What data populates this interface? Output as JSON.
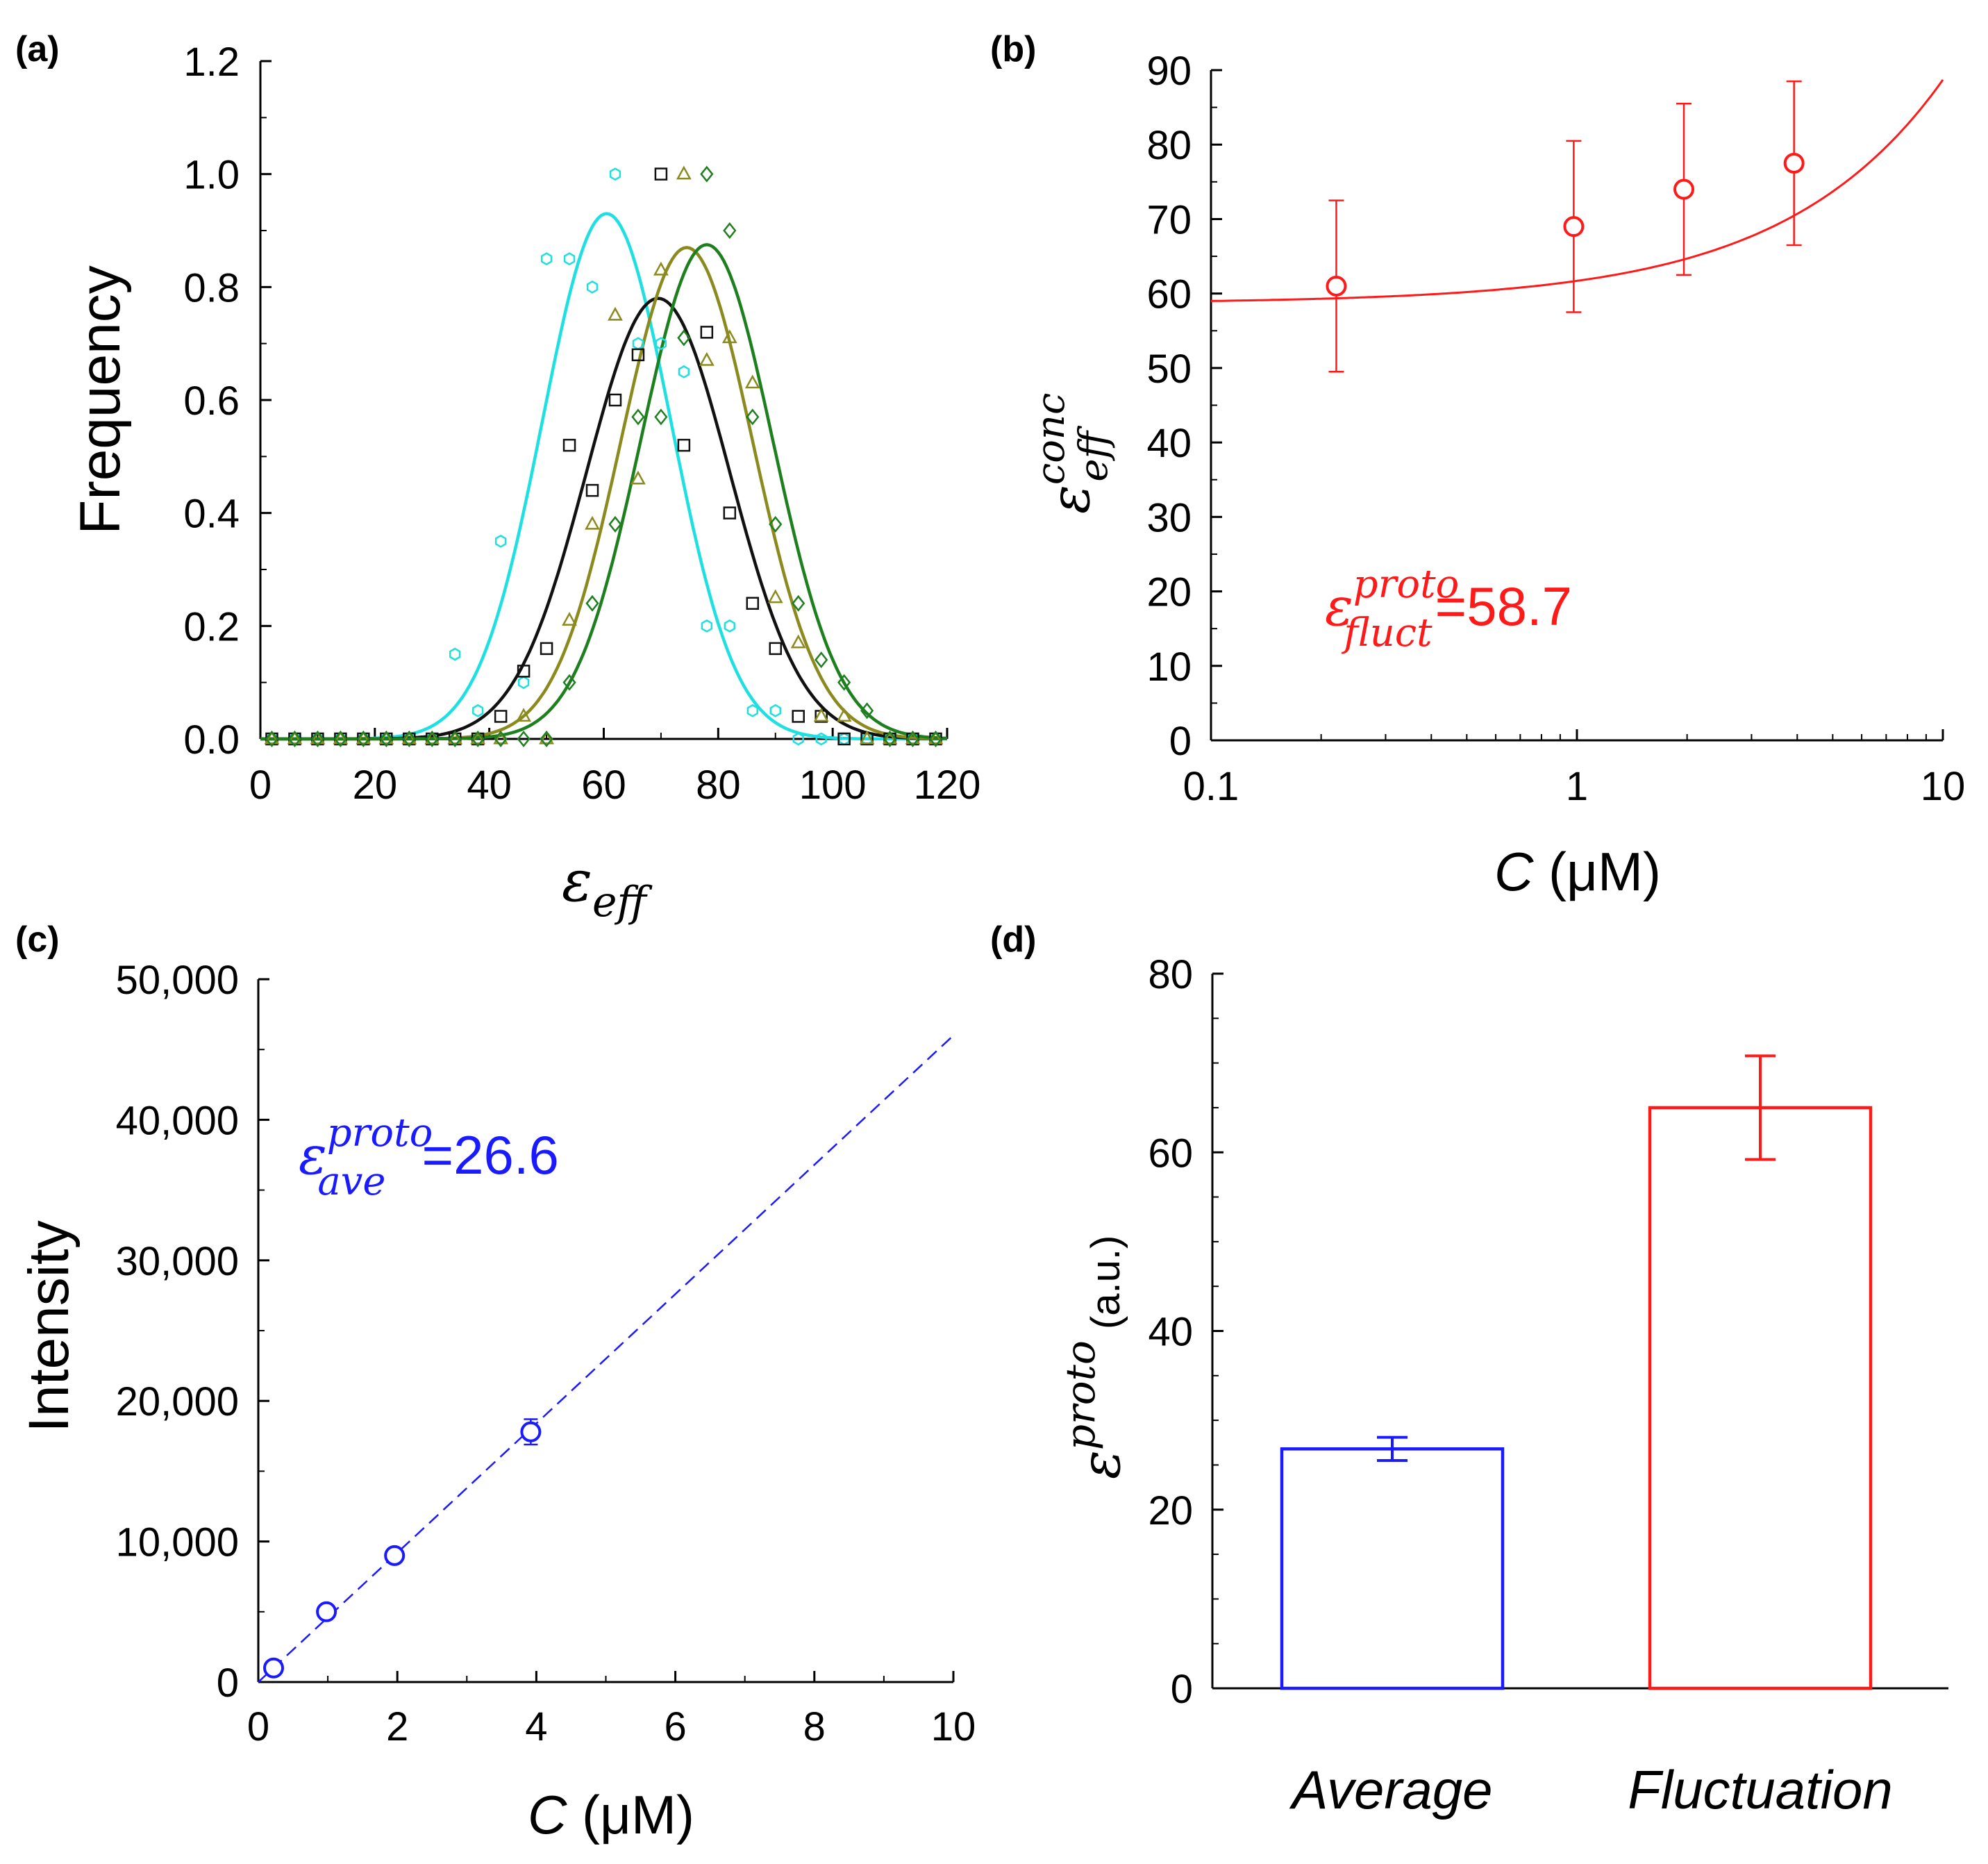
{
  "chart_data": [
    {
      "id": "a",
      "panel_label": "(a)",
      "type": "scatter",
      "xlabel_symbol": "ε",
      "xlabel_sub": "eff",
      "ylabel": "Frequency",
      "xlim": [
        0,
        120
      ],
      "ylim": [
        0,
        1.2
      ],
      "xticks": [
        0,
        20,
        40,
        60,
        80,
        100,
        120
      ],
      "yticks": [
        0,
        0.2,
        0.4,
        0.6,
        0.8,
        1.0,
        1.2
      ],
      "ytick_labels": [
        "0.0",
        "0.2",
        "0.4",
        "0.6",
        "0.8",
        "1.0",
        "1.2"
      ],
      "series": [
        {
          "name": "cyan",
          "color": "#1ee0e0",
          "marker": "hexagon",
          "mean": 60.5,
          "sd": 11.2,
          "amp": 0.93,
          "x": [
            2,
            6,
            10,
            14,
            18,
            22,
            26,
            30,
            34,
            38,
            42,
            46,
            50,
            54,
            58,
            62,
            66,
            70,
            74,
            78,
            82,
            86,
            90,
            94,
            98,
            102,
            106,
            110,
            114,
            118
          ],
          "y": [
            0,
            0,
            0,
            0,
            0,
            0,
            0,
            0,
            0.15,
            0.05,
            0.35,
            0.1,
            0.85,
            0.85,
            0.8,
            1.0,
            0.7,
            0.7,
            0.65,
            0.2,
            0.2,
            0.05,
            0.05,
            0,
            0,
            0,
            0,
            0,
            0,
            0
          ]
        },
        {
          "name": "black",
          "color": "#111111",
          "marker": "square",
          "mean": 69.5,
          "sd": 12.5,
          "amp": 0.78,
          "x": [
            2,
            6,
            10,
            14,
            18,
            22,
            26,
            30,
            34,
            38,
            42,
            46,
            50,
            54,
            58,
            62,
            66,
            70,
            74,
            78,
            82,
            86,
            90,
            94,
            98,
            102,
            106,
            110,
            114,
            118
          ],
          "y": [
            0,
            0,
            0,
            0,
            0,
            0,
            0,
            0,
            0,
            0,
            0.04,
            0.12,
            0.16,
            0.52,
            0.44,
            0.6,
            0.68,
            1.0,
            0.52,
            0.72,
            0.4,
            0.24,
            0.16,
            0.04,
            0.04,
            0,
            0,
            0,
            0,
            0
          ]
        },
        {
          "name": "olive",
          "color": "#8a8a1e",
          "marker": "triangle",
          "mean": 74.5,
          "sd": 11.5,
          "amp": 0.87,
          "x": [
            2,
            6,
            10,
            14,
            18,
            22,
            26,
            30,
            34,
            38,
            42,
            46,
            50,
            54,
            58,
            62,
            66,
            70,
            74,
            78,
            82,
            86,
            90,
            94,
            98,
            102,
            106,
            110,
            114,
            118
          ],
          "y": [
            0,
            0,
            0,
            0,
            0,
            0,
            0,
            0,
            0,
            0,
            0,
            0.04,
            0,
            0.21,
            0.38,
            0.75,
            0.46,
            0.83,
            1.0,
            0.67,
            0.71,
            0.63,
            0.25,
            0.17,
            0.04,
            0.04,
            0,
            0,
            0,
            0
          ]
        },
        {
          "name": "green",
          "color": "#1e7f1e",
          "marker": "diamond",
          "mean": 78,
          "sd": 11.5,
          "amp": 0.875,
          "x": [
            2,
            6,
            10,
            14,
            18,
            22,
            26,
            30,
            34,
            38,
            42,
            46,
            50,
            54,
            58,
            62,
            66,
            70,
            74,
            78,
            82,
            86,
            90,
            94,
            98,
            102,
            106,
            110,
            114,
            118
          ],
          "y": [
            0,
            0,
            0,
            0,
            0,
            0,
            0,
            0,
            0,
            0,
            0,
            0,
            0,
            0.1,
            0.24,
            0.38,
            0.57,
            0.57,
            0.71,
            1.0,
            0.9,
            0.57,
            0.38,
            0.24,
            0.14,
            0.1,
            0.05,
            0,
            0,
            0
          ]
        }
      ]
    },
    {
      "id": "b",
      "panel_label": "(b)",
      "type": "scatter",
      "xscale": "log",
      "xlabel": "C",
      "xlabel_unit": "(μM)",
      "ylabel_symbol": "ε",
      "ylabel_sup": "conc",
      "ylabel_sub": "eff",
      "xlim": [
        0.1,
        10
      ],
      "ylim": [
        0,
        90
      ],
      "xticks": [
        0.1,
        1,
        10
      ],
      "xtick_labels": [
        "0.1",
        "1",
        "10"
      ],
      "yticks": [
        0,
        10,
        20,
        30,
        40,
        50,
        60,
        70,
        80,
        90
      ],
      "color": "#ff1a1a",
      "points": {
        "x": [
          0.22,
          0.98,
          1.96,
          3.92
        ],
        "y": [
          61,
          69,
          74,
          77.5
        ],
        "err": [
          11.5,
          11.5,
          11.5,
          11
        ]
      },
      "fit": {
        "intercept": 58.7,
        "slope": 3.0
      },
      "annotation": {
        "symbol": "ε",
        "sup": "proto",
        "sub": "fluct",
        "value": "=58.7"
      }
    },
    {
      "id": "c",
      "panel_label": "(c)",
      "type": "scatter",
      "xlabel": "C",
      "xlabel_unit": "(μM)",
      "ylabel": "Intensity",
      "xlim": [
        0,
        10
      ],
      "ylim": [
        0,
        50000
      ],
      "xticks": [
        0,
        2,
        4,
        6,
        8,
        10
      ],
      "yticks": [
        0,
        10000,
        20000,
        30000,
        40000,
        50000
      ],
      "ytick_labels": [
        "0",
        "10,000",
        "20,000",
        "30,000",
        "40,000",
        "50,000"
      ],
      "color": "#1a1aff",
      "points": {
        "x": [
          0.22,
          0.98,
          1.96,
          3.92
        ],
        "y": [
          1000,
          5000,
          9000,
          17800
        ],
        "err": [
          0,
          0,
          0,
          900
        ]
      },
      "fit": {
        "slope": 4600,
        "intercept": 0
      },
      "annotation": {
        "symbol": "ε",
        "sup": "proto",
        "sub": "ave",
        "value": "=26.6"
      }
    },
    {
      "id": "d",
      "panel_label": "(d)",
      "type": "bar",
      "categories": [
        "Average",
        "Fluctuation"
      ],
      "values": [
        26.8,
        65.0
      ],
      "errors": [
        1.3,
        5.8
      ],
      "colors": [
        "#1a1aff",
        "#ff1a1a"
      ],
      "ylim": [
        0,
        80
      ],
      "yticks": [
        0,
        20,
        40,
        60,
        80
      ],
      "ylabel_symbol": "ε",
      "ylabel_sup": "proto",
      "ylabel_unit": "(a.u.)"
    }
  ]
}
